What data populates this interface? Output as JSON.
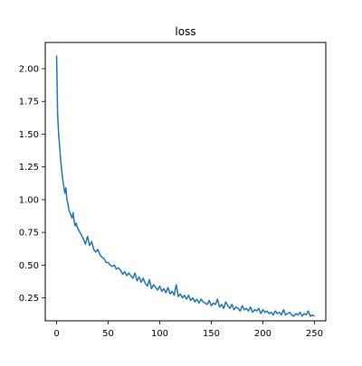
{
  "chart_data": {
    "type": "line",
    "title": "loss",
    "xlabel": "",
    "ylabel": "",
    "xlim": [
      -11,
      261
    ],
    "ylim": [
      0.075,
      2.2
    ],
    "x_ticks": [
      0,
      50,
      100,
      150,
      200,
      250
    ],
    "y_ticks": [
      0.25,
      0.5,
      0.75,
      1.0,
      1.25,
      1.5,
      1.75,
      2.0
    ],
    "x_tick_labels": [
      "0",
      "50",
      "100",
      "150",
      "200",
      "250"
    ],
    "y_tick_labels": [
      "0.25",
      "0.50",
      "0.75",
      "1.00",
      "1.25",
      "1.50",
      "1.75",
      "2.00"
    ],
    "grid": false,
    "line_color": "#1f77b4",
    "series": [
      {
        "x": [
          0,
          1,
          2,
          3,
          4,
          5,
          6,
          7,
          8,
          9,
          10,
          11,
          12,
          13,
          14,
          15,
          16,
          17,
          18,
          19,
          20,
          22,
          24,
          26,
          28,
          30,
          32,
          34,
          36,
          38,
          40,
          42,
          44,
          46,
          48,
          50,
          52,
          54,
          56,
          58,
          60,
          62,
          64,
          66,
          68,
          70,
          72,
          74,
          76,
          78,
          80,
          82,
          84,
          86,
          88,
          90,
          92,
          94,
          96,
          98,
          100,
          102,
          104,
          106,
          108,
          110,
          112,
          114,
          116,
          118,
          120,
          122,
          124,
          126,
          128,
          130,
          132,
          134,
          136,
          138,
          140,
          142,
          144,
          146,
          148,
          150,
          152,
          154,
          156,
          158,
          160,
          162,
          164,
          166,
          168,
          170,
          172,
          174,
          176,
          178,
          180,
          182,
          184,
          186,
          188,
          190,
          192,
          194,
          196,
          198,
          200,
          202,
          204,
          206,
          208,
          210,
          212,
          214,
          216,
          218,
          220,
          222,
          224,
          226,
          228,
          230,
          232,
          234,
          236,
          238,
          240,
          242,
          244,
          246,
          248,
          250
        ],
        "y": [
          2.1,
          1.65,
          1.5,
          1.4,
          1.3,
          1.22,
          1.15,
          1.1,
          1.05,
          1.09,
          1.0,
          0.97,
          0.92,
          0.9,
          0.88,
          0.86,
          0.9,
          0.84,
          0.8,
          0.82,
          0.79,
          0.76,
          0.73,
          0.7,
          0.66,
          0.72,
          0.65,
          0.68,
          0.62,
          0.6,
          0.62,
          0.58,
          0.56,
          0.55,
          0.52,
          0.52,
          0.5,
          0.49,
          0.5,
          0.47,
          0.48,
          0.46,
          0.43,
          0.45,
          0.42,
          0.44,
          0.42,
          0.4,
          0.44,
          0.38,
          0.41,
          0.37,
          0.4,
          0.36,
          0.34,
          0.39,
          0.32,
          0.35,
          0.33,
          0.31,
          0.34,
          0.3,
          0.32,
          0.29,
          0.33,
          0.28,
          0.3,
          0.27,
          0.35,
          0.26,
          0.28,
          0.25,
          0.27,
          0.24,
          0.27,
          0.23,
          0.25,
          0.22,
          0.24,
          0.21,
          0.24,
          0.22,
          0.21,
          0.2,
          0.23,
          0.19,
          0.21,
          0.2,
          0.24,
          0.18,
          0.2,
          0.17,
          0.22,
          0.19,
          0.17,
          0.2,
          0.16,
          0.18,
          0.17,
          0.15,
          0.19,
          0.16,
          0.17,
          0.15,
          0.18,
          0.14,
          0.16,
          0.15,
          0.17,
          0.13,
          0.16,
          0.14,
          0.15,
          0.13,
          0.14,
          0.12,
          0.15,
          0.13,
          0.14,
          0.12,
          0.16,
          0.12,
          0.13,
          0.14,
          0.12,
          0.11,
          0.13,
          0.12,
          0.14,
          0.11,
          0.13,
          0.12,
          0.15,
          0.11,
          0.12,
          0.11
        ]
      }
    ]
  }
}
